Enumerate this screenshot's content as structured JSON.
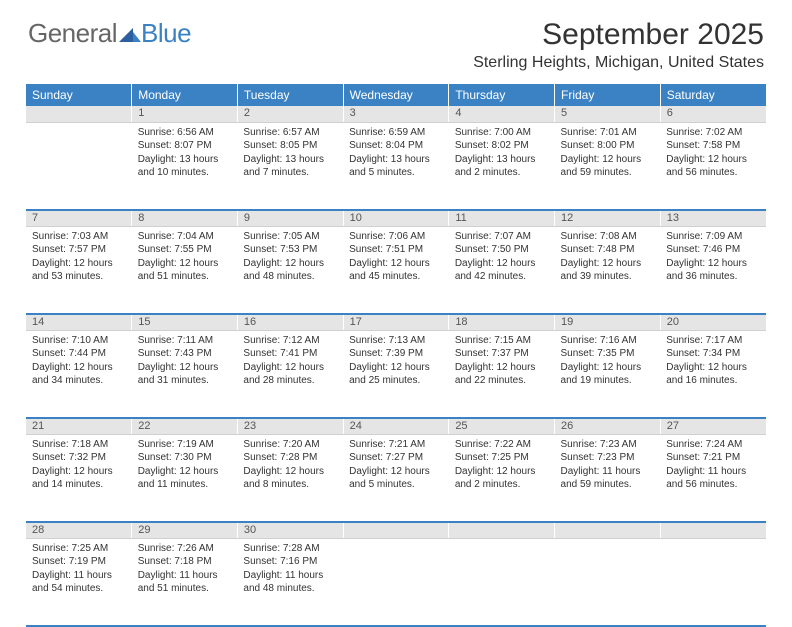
{
  "logo": {
    "text1": "General",
    "text2": "Blue"
  },
  "title": "September 2025",
  "location": "Sterling Heights, Michigan, United States",
  "colors": {
    "header_bg": "#3b82c4",
    "header_text": "#ffffff",
    "daynum_bg": "#e5e5e5",
    "text": "#333333",
    "border": "#3b82c4"
  },
  "daysOfWeek": [
    "Sunday",
    "Monday",
    "Tuesday",
    "Wednesday",
    "Thursday",
    "Friday",
    "Saturday"
  ],
  "weeks": [
    [
      {
        "num": "",
        "sunrise": "",
        "sunset": "",
        "daylight": ""
      },
      {
        "num": "1",
        "sunrise": "Sunrise: 6:56 AM",
        "sunset": "Sunset: 8:07 PM",
        "daylight": "Daylight: 13 hours and 10 minutes."
      },
      {
        "num": "2",
        "sunrise": "Sunrise: 6:57 AM",
        "sunset": "Sunset: 8:05 PM",
        "daylight": "Daylight: 13 hours and 7 minutes."
      },
      {
        "num": "3",
        "sunrise": "Sunrise: 6:59 AM",
        "sunset": "Sunset: 8:04 PM",
        "daylight": "Daylight: 13 hours and 5 minutes."
      },
      {
        "num": "4",
        "sunrise": "Sunrise: 7:00 AM",
        "sunset": "Sunset: 8:02 PM",
        "daylight": "Daylight: 13 hours and 2 minutes."
      },
      {
        "num": "5",
        "sunrise": "Sunrise: 7:01 AM",
        "sunset": "Sunset: 8:00 PM",
        "daylight": "Daylight: 12 hours and 59 minutes."
      },
      {
        "num": "6",
        "sunrise": "Sunrise: 7:02 AM",
        "sunset": "Sunset: 7:58 PM",
        "daylight": "Daylight: 12 hours and 56 minutes."
      }
    ],
    [
      {
        "num": "7",
        "sunrise": "Sunrise: 7:03 AM",
        "sunset": "Sunset: 7:57 PM",
        "daylight": "Daylight: 12 hours and 53 minutes."
      },
      {
        "num": "8",
        "sunrise": "Sunrise: 7:04 AM",
        "sunset": "Sunset: 7:55 PM",
        "daylight": "Daylight: 12 hours and 51 minutes."
      },
      {
        "num": "9",
        "sunrise": "Sunrise: 7:05 AM",
        "sunset": "Sunset: 7:53 PM",
        "daylight": "Daylight: 12 hours and 48 minutes."
      },
      {
        "num": "10",
        "sunrise": "Sunrise: 7:06 AM",
        "sunset": "Sunset: 7:51 PM",
        "daylight": "Daylight: 12 hours and 45 minutes."
      },
      {
        "num": "11",
        "sunrise": "Sunrise: 7:07 AM",
        "sunset": "Sunset: 7:50 PM",
        "daylight": "Daylight: 12 hours and 42 minutes."
      },
      {
        "num": "12",
        "sunrise": "Sunrise: 7:08 AM",
        "sunset": "Sunset: 7:48 PM",
        "daylight": "Daylight: 12 hours and 39 minutes."
      },
      {
        "num": "13",
        "sunrise": "Sunrise: 7:09 AM",
        "sunset": "Sunset: 7:46 PM",
        "daylight": "Daylight: 12 hours and 36 minutes."
      }
    ],
    [
      {
        "num": "14",
        "sunrise": "Sunrise: 7:10 AM",
        "sunset": "Sunset: 7:44 PM",
        "daylight": "Daylight: 12 hours and 34 minutes."
      },
      {
        "num": "15",
        "sunrise": "Sunrise: 7:11 AM",
        "sunset": "Sunset: 7:43 PM",
        "daylight": "Daylight: 12 hours and 31 minutes."
      },
      {
        "num": "16",
        "sunrise": "Sunrise: 7:12 AM",
        "sunset": "Sunset: 7:41 PM",
        "daylight": "Daylight: 12 hours and 28 minutes."
      },
      {
        "num": "17",
        "sunrise": "Sunrise: 7:13 AM",
        "sunset": "Sunset: 7:39 PM",
        "daylight": "Daylight: 12 hours and 25 minutes."
      },
      {
        "num": "18",
        "sunrise": "Sunrise: 7:15 AM",
        "sunset": "Sunset: 7:37 PM",
        "daylight": "Daylight: 12 hours and 22 minutes."
      },
      {
        "num": "19",
        "sunrise": "Sunrise: 7:16 AM",
        "sunset": "Sunset: 7:35 PM",
        "daylight": "Daylight: 12 hours and 19 minutes."
      },
      {
        "num": "20",
        "sunrise": "Sunrise: 7:17 AM",
        "sunset": "Sunset: 7:34 PM",
        "daylight": "Daylight: 12 hours and 16 minutes."
      }
    ],
    [
      {
        "num": "21",
        "sunrise": "Sunrise: 7:18 AM",
        "sunset": "Sunset: 7:32 PM",
        "daylight": "Daylight: 12 hours and 14 minutes."
      },
      {
        "num": "22",
        "sunrise": "Sunrise: 7:19 AM",
        "sunset": "Sunset: 7:30 PM",
        "daylight": "Daylight: 12 hours and 11 minutes."
      },
      {
        "num": "23",
        "sunrise": "Sunrise: 7:20 AM",
        "sunset": "Sunset: 7:28 PM",
        "daylight": "Daylight: 12 hours and 8 minutes."
      },
      {
        "num": "24",
        "sunrise": "Sunrise: 7:21 AM",
        "sunset": "Sunset: 7:27 PM",
        "daylight": "Daylight: 12 hours and 5 minutes."
      },
      {
        "num": "25",
        "sunrise": "Sunrise: 7:22 AM",
        "sunset": "Sunset: 7:25 PM",
        "daylight": "Daylight: 12 hours and 2 minutes."
      },
      {
        "num": "26",
        "sunrise": "Sunrise: 7:23 AM",
        "sunset": "Sunset: 7:23 PM",
        "daylight": "Daylight: 11 hours and 59 minutes."
      },
      {
        "num": "27",
        "sunrise": "Sunrise: 7:24 AM",
        "sunset": "Sunset: 7:21 PM",
        "daylight": "Daylight: 11 hours and 56 minutes."
      }
    ],
    [
      {
        "num": "28",
        "sunrise": "Sunrise: 7:25 AM",
        "sunset": "Sunset: 7:19 PM",
        "daylight": "Daylight: 11 hours and 54 minutes."
      },
      {
        "num": "29",
        "sunrise": "Sunrise: 7:26 AM",
        "sunset": "Sunset: 7:18 PM",
        "daylight": "Daylight: 11 hours and 51 minutes."
      },
      {
        "num": "30",
        "sunrise": "Sunrise: 7:28 AM",
        "sunset": "Sunset: 7:16 PM",
        "daylight": "Daylight: 11 hours and 48 minutes."
      },
      {
        "num": "",
        "sunrise": "",
        "sunset": "",
        "daylight": ""
      },
      {
        "num": "",
        "sunrise": "",
        "sunset": "",
        "daylight": ""
      },
      {
        "num": "",
        "sunrise": "",
        "sunset": "",
        "daylight": ""
      },
      {
        "num": "",
        "sunrise": "",
        "sunset": "",
        "daylight": ""
      }
    ]
  ]
}
